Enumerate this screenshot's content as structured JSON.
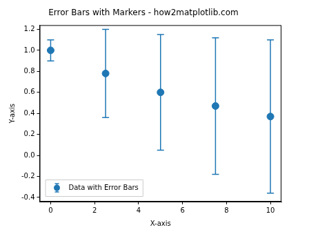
{
  "chart_data": {
    "type": "scatter",
    "title": "Error Bars with Markers - how2matplotlib.com",
    "x_label": "X-axis",
    "y_label": "Y-axis",
    "x": [
      0,
      2.5,
      5,
      7.5,
      10
    ],
    "series": [
      {
        "name": "Data with Error Bars",
        "color": "#1f77b4",
        "marker": "circle",
        "values": [
          1.0,
          0.78,
          0.6,
          0.47,
          0.37
        ],
        "errors": [
          0.1,
          0.42,
          0.55,
          0.65,
          0.73
        ]
      }
    ],
    "xlim": [
      -0.5,
      10.5
    ],
    "xticks": [
      0,
      2,
      4,
      6,
      8,
      10
    ],
    "ylim": [
      -0.44,
      1.24
    ],
    "yticks": [
      -0.4,
      -0.2,
      {
        "value": 0,
        "label": "0.0"
      },
      0.2,
      0.4,
      0.6,
      0.8,
      {
        "value": 1,
        "label": "1.0"
      },
      1.2
    ],
    "grid": false,
    "legend": "lower left"
  }
}
